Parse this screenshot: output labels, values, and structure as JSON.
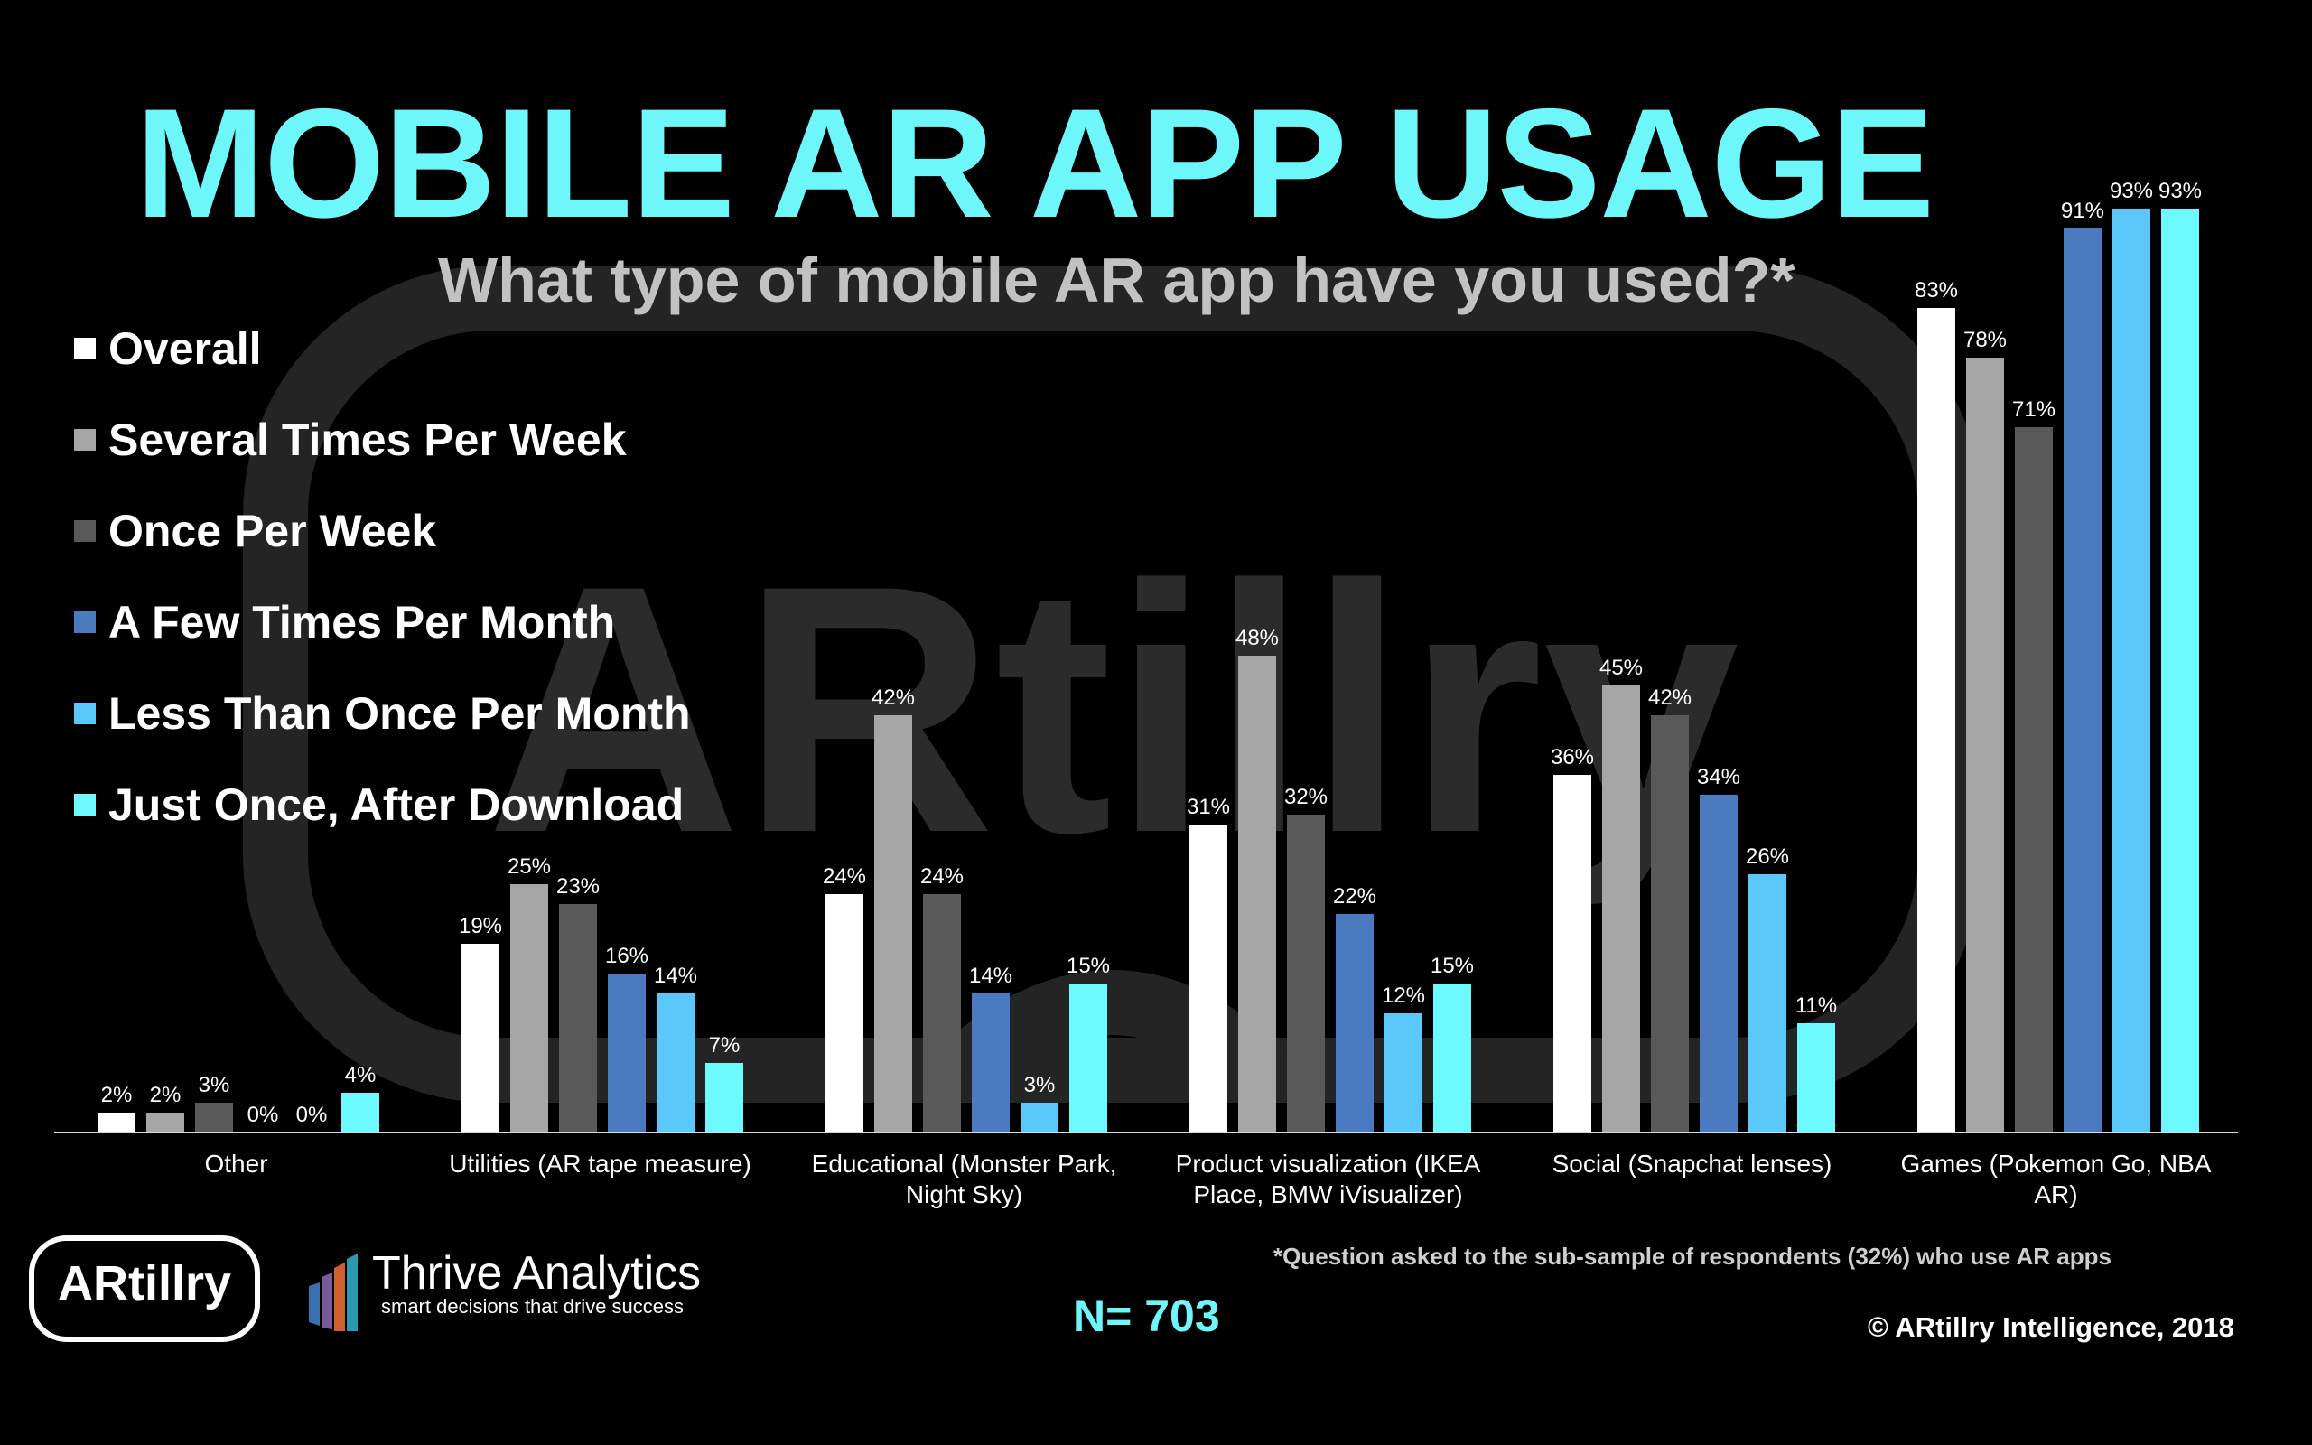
{
  "title": "MOBILE AR APP USAGE",
  "subtitle": "What type of mobile AR app have you used?*",
  "watermark_text": "ARtillry",
  "footnote": "*Question asked to the sub-sample of respondents (32%) who use AR apps",
  "sample_size": "N= 703",
  "copyright": "© ARtillry Intelligence, 2018",
  "logos": {
    "artillry": "ARtillry",
    "thrive_name": "Thrive Analytics",
    "thrive_tagline": "smart decisions that drive success"
  },
  "colors": {
    "title": "#6ef7fb",
    "background": "#000000",
    "series": [
      "#ffffff",
      "#a6a6a6",
      "#595959",
      "#4a7abf",
      "#5ac8fa",
      "#6cfafe"
    ]
  },
  "chart_data": {
    "type": "bar",
    "categories": [
      "Other",
      "Utilities (AR tape measure)",
      "Educational (Monster Park, Night Sky)",
      "Product visualization (IKEA Place, BMW iVisualizer)",
      "Social (Snapchat lenses)",
      "Games (Pokemon Go, NBA AR)"
    ],
    "category_lines": [
      [
        "Other"
      ],
      [
        "Utilities (AR tape measure)"
      ],
      [
        "Educational (Monster Park,",
        "Night Sky)"
      ],
      [
        "Product visualization (IKEA",
        "Place, BMW iVisualizer)"
      ],
      [
        "Social (Snapchat lenses)"
      ],
      [
        "Games (Pokemon Go, NBA",
        "AR)"
      ]
    ],
    "series": [
      {
        "name": "Overall",
        "color": "#ffffff",
        "values": [
          2,
          19,
          24,
          31,
          36,
          83
        ]
      },
      {
        "name": "Several Times Per Week",
        "color": "#a6a6a6",
        "values": [
          2,
          25,
          42,
          48,
          45,
          78
        ]
      },
      {
        "name": "Once Per Week",
        "color": "#595959",
        "values": [
          3,
          23,
          24,
          32,
          42,
          71
        ]
      },
      {
        "name": "A Few Times Per Month",
        "color": "#4a7abf",
        "values": [
          0,
          16,
          14,
          22,
          34,
          91
        ]
      },
      {
        "name": "Less Than Once Per Month",
        "color": "#5ac8fa",
        "values": [
          0,
          14,
          3,
          12,
          26,
          93
        ]
      },
      {
        "name": "Just Once, After Download",
        "color": "#6cfafe",
        "values": [
          4,
          7,
          15,
          15,
          11,
          93
        ]
      }
    ],
    "value_suffix": "%",
    "ylim": [
      0,
      93
    ],
    "legend_position": "top-left",
    "grid": false,
    "xlabel": "",
    "ylabel": ""
  }
}
